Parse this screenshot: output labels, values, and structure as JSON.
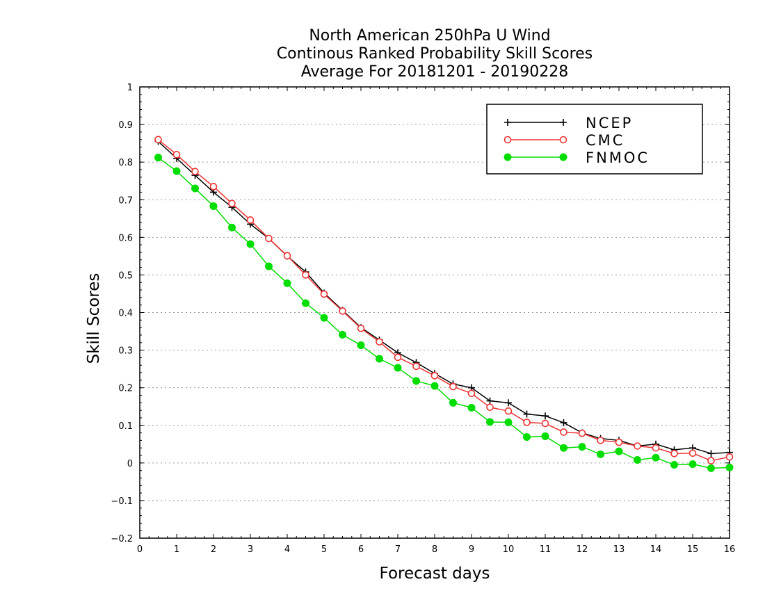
{
  "chart_data": {
    "type": "line",
    "title": [
      "North American 250hPa U Wind",
      "Continous Ranked Probability Skill Scores",
      "Average For 20181201 - 20190228"
    ],
    "xlabel": "Forecast days",
    "ylabel": "Skill Scores",
    "xlim": [
      0,
      16
    ],
    "ylim": [
      -0.2,
      1
    ],
    "xticks": [
      "0",
      "1",
      "2",
      "3",
      "4",
      "5",
      "6",
      "7",
      "8",
      "9",
      "10",
      "11",
      "12",
      "13",
      "14",
      "15",
      "16"
    ],
    "yticks": [
      "−0.2",
      "−0.1",
      "0",
      "0.1",
      "0.2",
      "0.3",
      "0.4",
      "0.5",
      "0.6",
      "0.7",
      "0.8",
      "0.9",
      "1"
    ],
    "grid": "horizontal dotted",
    "legend_position": "top-right",
    "x": [
      0.5,
      1,
      1.5,
      2,
      2.5,
      3,
      3.5,
      4,
      4.5,
      5,
      5.5,
      6,
      6.5,
      7,
      7.5,
      8,
      8.5,
      9,
      9.5,
      10,
      10.5,
      11,
      11.5,
      12,
      12.5,
      13,
      13.5,
      14,
      14.5,
      15,
      15.5,
      16
    ],
    "series": [
      {
        "name": "NCEP",
        "color": "#000000",
        "marker": "plus",
        "values": [
          0.855,
          0.81,
          0.765,
          0.72,
          0.68,
          0.635,
          0.597,
          0.55,
          0.508,
          0.452,
          0.406,
          0.36,
          0.327,
          0.293,
          0.267,
          0.238,
          0.21,
          0.2,
          0.165,
          0.16,
          0.13,
          0.125,
          0.107,
          0.08,
          0.065,
          0.06,
          0.045,
          0.05,
          0.035,
          0.04,
          0.025,
          0.028
        ]
      },
      {
        "name": "CMC",
        "color": "#ee3333",
        "marker": "open-circle",
        "values": [
          0.86,
          0.82,
          0.775,
          0.735,
          0.69,
          0.646,
          0.597,
          0.551,
          0.5,
          0.449,
          0.404,
          0.358,
          0.322,
          0.281,
          0.257,
          0.232,
          0.203,
          0.185,
          0.148,
          0.138,
          0.108,
          0.105,
          0.082,
          0.079,
          0.06,
          0.055,
          0.045,
          0.04,
          0.025,
          0.026,
          0.006,
          0.016
        ]
      },
      {
        "name": "FNMOC",
        "color": "#00dd00",
        "marker": "filled-circle",
        "values": [
          0.812,
          0.776,
          0.73,
          0.683,
          0.626,
          0.582,
          0.523,
          0.478,
          0.425,
          0.386,
          0.341,
          0.313,
          0.277,
          0.253,
          0.218,
          0.205,
          0.16,
          0.147,
          0.109,
          0.108,
          0.069,
          0.071,
          0.04,
          0.043,
          0.023,
          0.031,
          0.008,
          0.014,
          -0.005,
          -0.003,
          -0.014,
          -0.012
        ]
      }
    ]
  }
}
